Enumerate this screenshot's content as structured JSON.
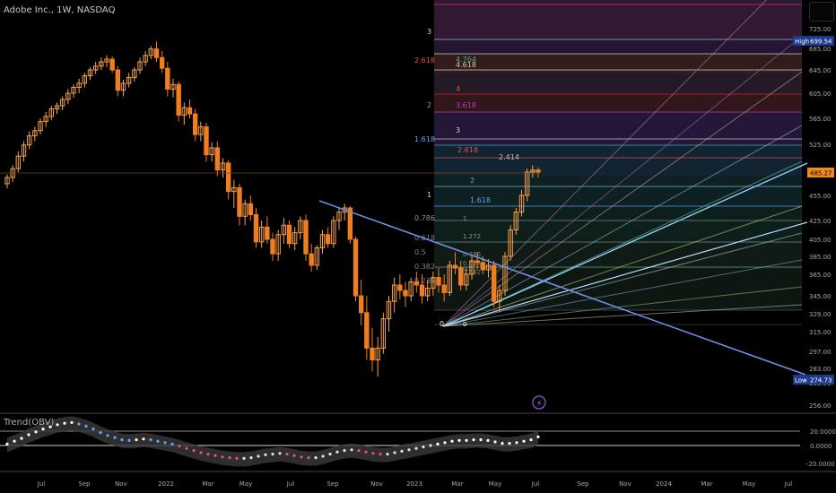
{
  "header": {
    "symbol_title": "Adobe Inc., 1W, NASDAQ"
  },
  "oscillator": {
    "title": "Trend(OBV)"
  },
  "colors": {
    "bg": "#000000",
    "candle_up": "#f6a24a",
    "candle_down": "#ef7e1e",
    "trendline": "#6b8fe6",
    "fib_fan": "#3a70d8",
    "axis_text": "#a8a8a8",
    "high_label_bg": "#1e3a8a",
    "current_price_bg": "#f08a20"
  },
  "chart_data": [
    {
      "type": "candlestick",
      "title": "Adobe Inc., 1W, NASDAQ",
      "y_axis_ticks": [
        "725.00",
        "685.00",
        "645.00",
        "605.00",
        "565.00",
        "525.00",
        "485.00",
        "455.00",
        "425.00",
        "405.00",
        "385.00",
        "365.00",
        "345.00",
        "329.00",
        "315.00",
        "297.00",
        "283.00",
        "269.00",
        "256.00"
      ],
      "x_axis_ticks": [
        "Jul",
        "Sep",
        "Nov",
        "2022",
        "Mar",
        "May",
        "Jul",
        "Sep",
        "Nov",
        "2023",
        "Mar",
        "May",
        "Jul",
        "Sep",
        "Nov",
        "2024",
        "Mar",
        "May",
        "Jul"
      ],
      "price_labels": [
        {
          "tag": "High",
          "value": "699.54"
        },
        {
          "tag": "",
          "value": "485.27"
        },
        {
          "tag": "Low",
          "value": "274.73"
        }
      ],
      "ohlc_weekly": [
        [
          470,
          482,
          464,
          478
        ],
        [
          478,
          495,
          472,
          490
        ],
        [
          490,
          515,
          485,
          508
        ],
        [
          508,
          530,
          500,
          524
        ],
        [
          524,
          545,
          518,
          538
        ],
        [
          538,
          552,
          530,
          546
        ],
        [
          546,
          565,
          540,
          560
        ],
        [
          560,
          575,
          552,
          568
        ],
        [
          568,
          585,
          562,
          580
        ],
        [
          580,
          590,
          572,
          585
        ],
        [
          585,
          600,
          578,
          595
        ],
        [
          595,
          612,
          588,
          605
        ],
        [
          605,
          620,
          598,
          615
        ],
        [
          615,
          630,
          605,
          622
        ],
        [
          622,
          640,
          615,
          635
        ],
        [
          635,
          650,
          628,
          645
        ],
        [
          645,
          660,
          638,
          652
        ],
        [
          652,
          668,
          645,
          660
        ],
        [
          660,
          672,
          650,
          665
        ],
        [
          665,
          670,
          640,
          645
        ],
        [
          645,
          652,
          600,
          610
        ],
        [
          610,
          628,
          600,
          622
        ],
        [
          622,
          640,
          615,
          632
        ],
        [
          632,
          650,
          625,
          645
        ],
        [
          645,
          668,
          638,
          660
        ],
        [
          660,
          680,
          652,
          672
        ],
        [
          672,
          690,
          665,
          684
        ],
        [
          684,
          699,
          660,
          668
        ],
        [
          668,
          680,
          640,
          648
        ],
        [
          648,
          660,
          600,
          612
        ],
        [
          612,
          630,
          598,
          620
        ],
        [
          620,
          625,
          560,
          570
        ],
        [
          570,
          590,
          555,
          582
        ],
        [
          582,
          595,
          565,
          572
        ],
        [
          572,
          580,
          530,
          540
        ],
        [
          540,
          560,
          530,
          552
        ],
        [
          552,
          558,
          500,
          510
        ],
        [
          510,
          528,
          500,
          520
        ],
        [
          520,
          530,
          480,
          488
        ],
        [
          488,
          505,
          478,
          498
        ],
        [
          498,
          502,
          450,
          460
        ],
        [
          460,
          475,
          440,
          465
        ],
        [
          465,
          470,
          420,
          430
        ],
        [
          430,
          450,
          420,
          445
        ],
        [
          445,
          455,
          425,
          432
        ],
        [
          432,
          440,
          395,
          402
        ],
        [
          402,
          425,
          395,
          418
        ],
        [
          418,
          430,
          400,
          405
        ],
        [
          405,
          412,
          380,
          388
        ],
        [
          388,
          415,
          380,
          410
        ],
        [
          410,
          428,
          400,
          420
        ],
        [
          420,
          425,
          395,
          400
        ],
        [
          400,
          418,
          392,
          412
        ],
        [
          412,
          430,
          405,
          425
        ],
        [
          425,
          432,
          380,
          388
        ],
        [
          388,
          400,
          368,
          375
        ],
        [
          375,
          398,
          370,
          395
        ],
        [
          395,
          415,
          388,
          410
        ],
        [
          410,
          418,
          395,
          400
        ],
        [
          400,
          430,
          395,
          425
        ],
        [
          425,
          440,
          415,
          435
        ],
        [
          435,
          445,
          425,
          440
        ],
        [
          440,
          442,
          400,
          405
        ],
        [
          405,
          408,
          340,
          345
        ],
        [
          345,
          360,
          320,
          330
        ],
        [
          330,
          345,
          290,
          300
        ],
        [
          300,
          318,
          280,
          290
        ],
        [
          290,
          310,
          275,
          300
        ],
        [
          300,
          330,
          295,
          325
        ],
        [
          325,
          345,
          315,
          340
        ],
        [
          340,
          362,
          330,
          355
        ],
        [
          355,
          365,
          342,
          350
        ],
        [
          350,
          358,
          335,
          345
        ],
        [
          345,
          362,
          340,
          358
        ],
        [
          358,
          368,
          348,
          355
        ],
        [
          355,
          365,
          338,
          345
        ],
        [
          345,
          360,
          340,
          352
        ],
        [
          352,
          368,
          345,
          362
        ],
        [
          362,
          372,
          348,
          355
        ],
        [
          355,
          365,
          340,
          348
        ],
        [
          348,
          380,
          345,
          375
        ],
        [
          375,
          390,
          365,
          372
        ],
        [
          372,
          380,
          350,
          355
        ],
        [
          355,
          372,
          350,
          365
        ],
        [
          365,
          385,
          360,
          380
        ],
        [
          380,
          390,
          370,
          378
        ],
        [
          378,
          385,
          365,
          370
        ],
        [
          370,
          382,
          362,
          375
        ],
        [
          375,
          380,
          335,
          340
        ],
        [
          340,
          355,
          330,
          350
        ],
        [
          350,
          390,
          345,
          385
        ],
        [
          385,
          420,
          380,
          415
        ],
        [
          415,
          440,
          410,
          435
        ],
        [
          435,
          462,
          430,
          455
        ],
        [
          455,
          490,
          448,
          485
        ],
        [
          485,
          495,
          478,
          488
        ],
        [
          488,
          492,
          478,
          485
        ]
      ],
      "trendline": {
        "from": {
          "time": "2022-09",
          "price": 429
        },
        "to": {
          "time": "2024-07",
          "price": 276
        }
      },
      "fib_levels_left": [
        "3",
        "2.618",
        "2",
        "1.618",
        "1",
        "0.786",
        "0.618",
        "0.5",
        "0.382",
        "0.236",
        "0"
      ],
      "fib_levels_right": [
        "4.764",
        "4.618",
        "4",
        "3.618",
        "3",
        "2.618",
        "2.414",
        "2",
        "1.618",
        "1.272",
        "1",
        "0.786",
        "0.618",
        "0.5",
        "0.382",
        "0"
      ]
    },
    {
      "type": "line",
      "title": "Trend(OBV)",
      "y_axis_ticks": [
        "20.0000",
        "0.0000",
        "-20.0000"
      ],
      "zero_line": 0,
      "series": [
        {
          "values": [
            2,
            6,
            10,
            15,
            19,
            23,
            26,
            29,
            31,
            32,
            30,
            27,
            23,
            18,
            14,
            11,
            8,
            7,
            8,
            9,
            8,
            6,
            4,
            2,
            -1,
            -4,
            -7,
            -10,
            -12,
            -14,
            -16,
            -17,
            -18,
            -18,
            -17,
            -15,
            -13,
            -12,
            -11,
            -12,
            -14,
            -16,
            -17,
            -17,
            -15,
            -12,
            -9,
            -7,
            -6,
            -7,
            -9,
            -11,
            -12,
            -12,
            -10,
            -8,
            -6,
            -4,
            -2,
            0,
            2,
            4,
            6,
            7,
            7,
            8,
            8,
            7,
            5,
            3,
            3,
            4,
            6,
            8,
            12
          ]
        }
      ]
    }
  ]
}
